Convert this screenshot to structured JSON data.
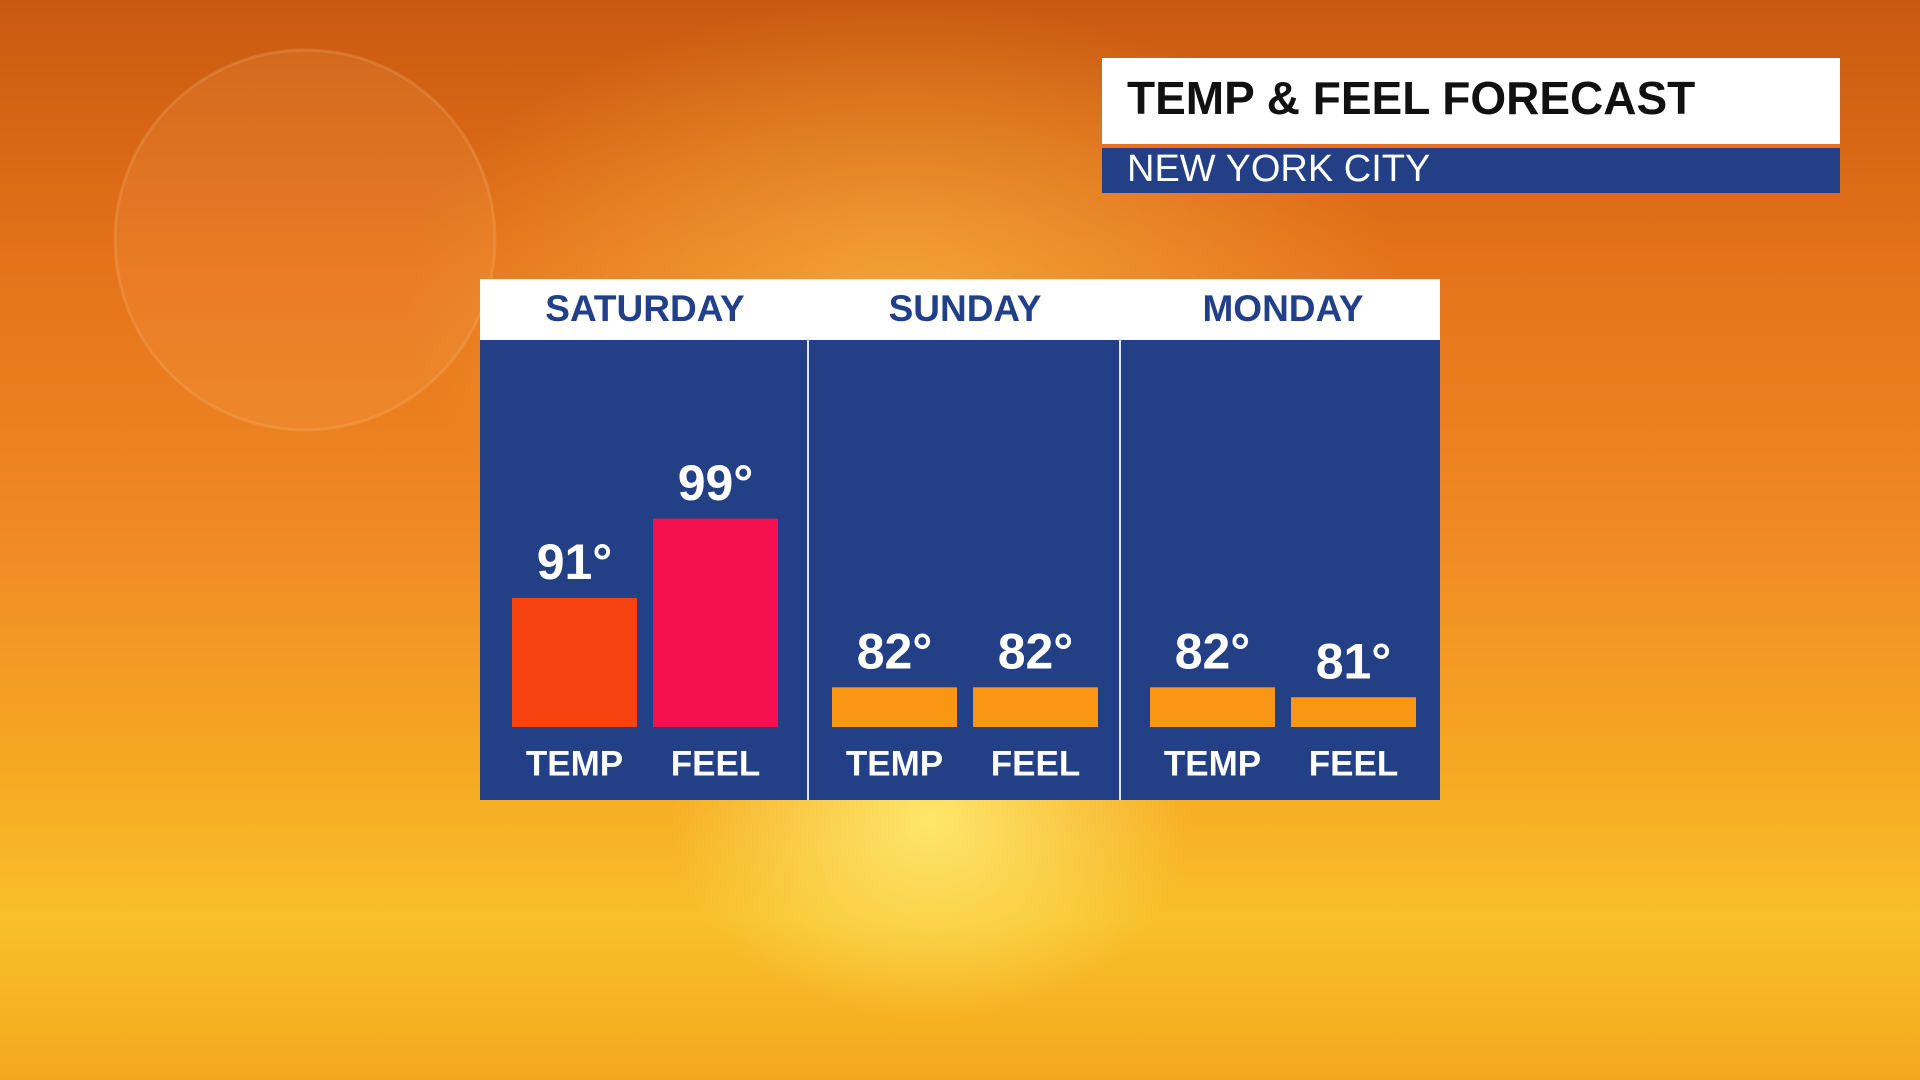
{
  "chart_data": {
    "type": "bar",
    "title": "TEMP & FEEL FORECAST",
    "subtitle": "NEW YORK CITY",
    "categories": [
      "SATURDAY",
      "SUNDAY",
      "MONDAY"
    ],
    "series": [
      {
        "name": "TEMP",
        "colors": [
          "#f5420f",
          "#fb9614",
          "#fb9614"
        ],
        "values": [
          91,
          82,
          82
        ],
        "value_labels": [
          "91°",
          "82°",
          "82°"
        ]
      },
      {
        "name": "FEEL",
        "colors": [
          "#f5104e",
          "#fb9614",
          "#fb9614"
        ],
        "values": [
          99,
          82,
          81
        ],
        "value_labels": [
          "99°",
          "82°",
          "81°"
        ]
      }
    ],
    "ylim": [
      78,
      117
    ]
  }
}
